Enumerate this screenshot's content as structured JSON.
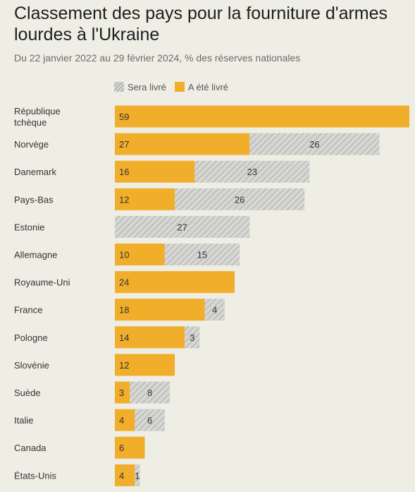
{
  "chart_data": {
    "type": "bar",
    "stacked": true,
    "orientation": "horizontal",
    "title": "Classement des pays pour la fourniture d'armes lourdes à l'Ukraine",
    "subtitle": "Du 22 janvier 2022 au 29 février 2024, % des réserves nationales",
    "legend": [
      "Sera livré",
      "A été livré"
    ],
    "categories": [
      "République tchèque",
      "Norvège",
      "Danemark",
      "Pays-Bas",
      "Estonie",
      "Allemagne",
      "Royaume-Uni",
      "France",
      "Pologne",
      "Slovénie",
      "Suède",
      "Italie",
      "Canada",
      "États-Unis"
    ],
    "category_lines": [
      [
        "République",
        "tchèque"
      ],
      [
        "Norvège"
      ],
      [
        "Danemark"
      ],
      [
        "Pays-Bas"
      ],
      [
        "Estonie"
      ],
      [
        "Allemagne"
      ],
      [
        "Royaume-Uni"
      ],
      [
        "France"
      ],
      [
        "Pologne"
      ],
      [
        "Slovénie"
      ],
      [
        "Suède"
      ],
      [
        "Italie"
      ],
      [
        "Canada"
      ],
      [
        "États-Unis"
      ]
    ],
    "series": [
      {
        "name": "A été livré",
        "color": "#f0ae2b",
        "values": [
          59,
          27,
          16,
          12,
          0,
          10,
          24,
          18,
          14,
          12,
          3,
          4,
          6,
          4
        ]
      },
      {
        "name": "Sera livré",
        "color": "#d6d6d2",
        "pattern": "hatch",
        "values": [
          0,
          26,
          23,
          26,
          27,
          15,
          0,
          4,
          3,
          0,
          8,
          6,
          0,
          1
        ]
      }
    ],
    "xlim": [
      0,
      59
    ]
  }
}
